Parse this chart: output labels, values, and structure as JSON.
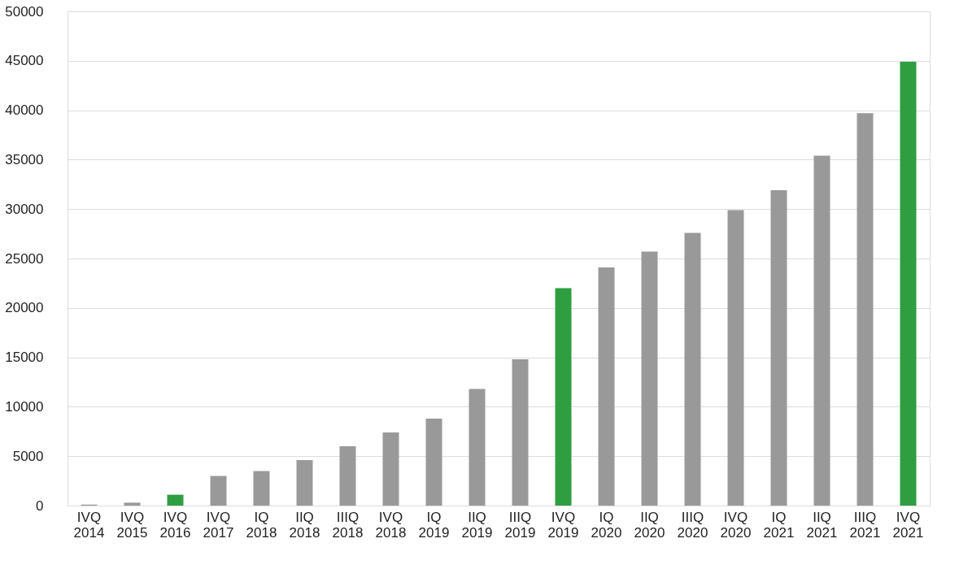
{
  "chart_data": {
    "type": "bar",
    "categories": [
      "IVQ\n2014",
      "IVQ\n2015",
      "IVQ\n2016",
      "IVQ\n2017",
      "IQ\n2018",
      "IIQ\n2018",
      "IIIQ\n2018",
      "IVQ\n2018",
      "IQ\n2019",
      "IIQ\n2019",
      "IIIQ\n2019",
      "IVQ\n2019",
      "IQ\n2020",
      "IIQ\n2020",
      "IIIQ\n2020",
      "IVQ\n2020",
      "IQ\n2021",
      "IIQ\n2021",
      "IIIQ\n2021",
      "IVQ\n2021"
    ],
    "values": [
      100,
      300,
      1100,
      3000,
      3500,
      4600,
      6000,
      7400,
      8800,
      11800,
      14800,
      22000,
      24100,
      25700,
      27600,
      29900,
      31900,
      35400,
      39700,
      44900
    ],
    "colors": [
      "#999999",
      "#999999",
      "#2e9e41",
      "#999999",
      "#999999",
      "#999999",
      "#999999",
      "#999999",
      "#999999",
      "#999999",
      "#999999",
      "#2e9e41",
      "#999999",
      "#999999",
      "#999999",
      "#999999",
      "#999999",
      "#999999",
      "#999999",
      "#2e9e41"
    ],
    "ylim": [
      0,
      50000
    ],
    "yticks": [
      0,
      5000,
      10000,
      15000,
      20000,
      25000,
      30000,
      35000,
      40000,
      45000,
      50000
    ],
    "grid": "y",
    "legend": false
  }
}
